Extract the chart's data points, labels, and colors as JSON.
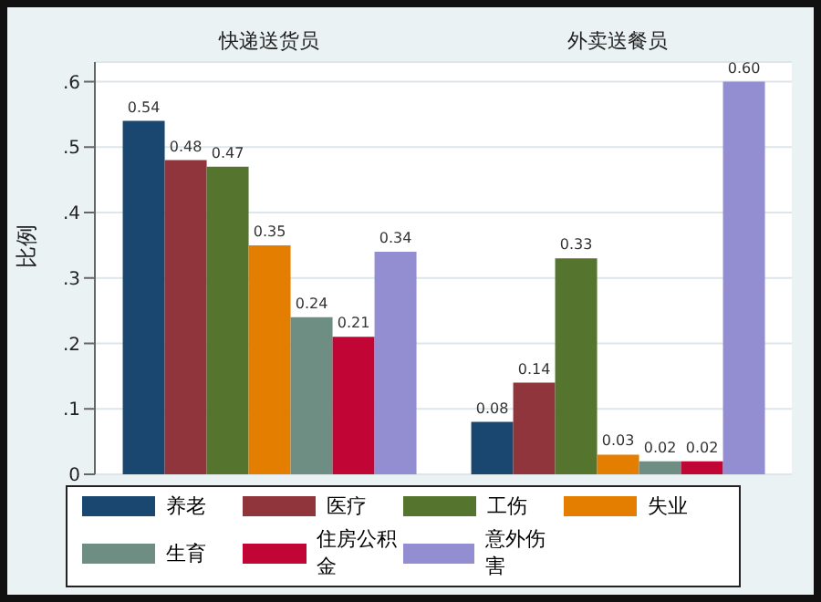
{
  "chart_data": {
    "type": "bar",
    "ylabel": "比例",
    "categories": [
      "快递送货员",
      "外卖送餐员"
    ],
    "series": [
      {
        "name": "养老",
        "color": "#1a476f",
        "values": [
          0.54,
          0.08
        ],
        "value_labels": [
          "0.54",
          "0.08"
        ]
      },
      {
        "name": "医疗",
        "color": "#90353b",
        "values": [
          0.48,
          0.14
        ],
        "value_labels": [
          "0.48",
          "0.14"
        ]
      },
      {
        "name": "工伤",
        "color": "#55752f",
        "values": [
          0.47,
          0.33
        ],
        "value_labels": [
          "0.47",
          "0.33"
        ]
      },
      {
        "name": "失业",
        "color": "#e37e00",
        "values": [
          0.35,
          0.03
        ],
        "value_labels": [
          "0.35",
          "0.03"
        ]
      },
      {
        "name": "生育",
        "color": "#6e8e84",
        "values": [
          0.24,
          0.02
        ],
        "value_labels": [
          "0.24",
          "0.02"
        ]
      },
      {
        "name": "住房公积金",
        "color": "#c10534",
        "values": [
          0.21,
          0.02
        ],
        "value_labels": [
          "0.21",
          "0.02"
        ]
      },
      {
        "name": "意外伤害",
        "color": "#938dd2",
        "values": [
          0.34,
          0.6
        ],
        "value_labels": [
          "0.34",
          "0.60"
        ]
      }
    ],
    "ylim": [
      0,
      0.63
    ],
    "yticks": [
      0,
      {
        "value": 0.1,
        "label": ".1"
      },
      {
        "value": 0.2,
        "label": ".2"
      },
      {
        "value": 0.3,
        "label": ".3"
      },
      {
        "value": 0.4,
        "label": ".4"
      },
      {
        "value": 0.5,
        "label": ".5"
      },
      {
        "value": 0.6,
        "label": ".6"
      }
    ],
    "grid": "y",
    "legend": "bottom"
  }
}
